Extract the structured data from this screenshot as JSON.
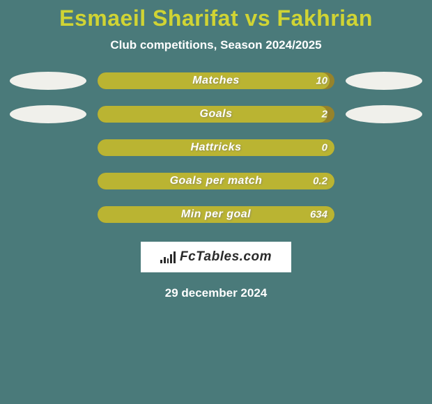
{
  "title": "Esmaeil Sharifat vs Fakhrian",
  "subtitle": "Club competitions, Season 2024/2025",
  "date": "29 december 2024",
  "logo_text": "FcTables.com",
  "colors": {
    "background": "#4a7a7a",
    "title": "#d0d434",
    "subtitle": "#ffffff",
    "date": "#ffffff",
    "bar_bg": "#96832b",
    "bar_fill": "#bab432",
    "bar_label": "#ffffff",
    "bar_value": "#fdfdf2",
    "pill": "#f0f0eb",
    "logo_bg": "#ffffff",
    "logo_text": "#2a2a2a",
    "logo_icon": "#2a2a2a"
  },
  "rows": [
    {
      "label": "Matches",
      "left": "",
      "right": "10",
      "fill_pct": 98,
      "show_pills": true
    },
    {
      "label": "Goals",
      "left": "",
      "right": "2",
      "fill_pct": 97,
      "show_pills": true
    },
    {
      "label": "Hattricks",
      "left": "",
      "right": "0",
      "fill_pct": 100,
      "show_pills": false
    },
    {
      "label": "Goals per match",
      "left": "",
      "right": "0.2",
      "fill_pct": 100,
      "show_pills": false
    },
    {
      "label": "Min per goal",
      "left": "",
      "right": "634",
      "fill_pct": 100,
      "show_pills": false
    }
  ],
  "logo_bars": [
    5,
    9,
    7,
    13,
    17
  ]
}
